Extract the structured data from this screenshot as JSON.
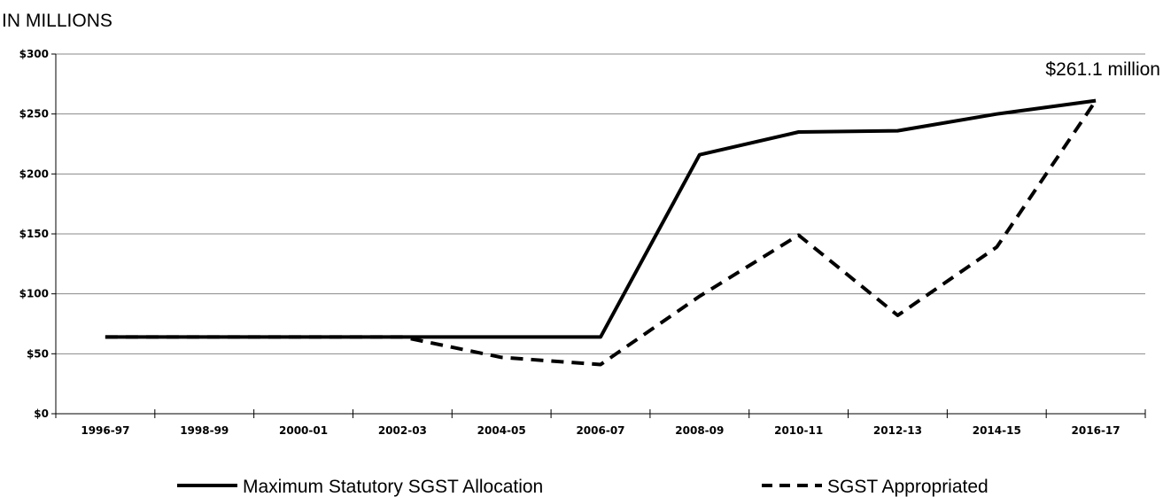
{
  "chart_data": {
    "type": "line",
    "unit_label": "IN MILLIONS",
    "x": [
      "1996-97",
      "1998-99",
      "2000-01",
      "2002-03",
      "2004-05",
      "2006-07",
      "2008-09",
      "2010-11",
      "2012-13",
      "2014-15",
      "2016-17"
    ],
    "y_ticks": [
      "$0",
      "$50",
      "$100",
      "$150",
      "$200",
      "$250",
      "$300"
    ],
    "ylim": [
      0,
      300
    ],
    "grid": true,
    "series": [
      {
        "name": "Maximum Statutory SGST Allocation",
        "style": "solid",
        "color": "#000000",
        "values": [
          64,
          64,
          64,
          64,
          64,
          64,
          216,
          235,
          236,
          250,
          261.1
        ]
      },
      {
        "name": "SGST Appropriated",
        "style": "dashed",
        "color": "#000000",
        "values": [
          64,
          64,
          64,
          64,
          47,
          41,
          98,
          149,
          82,
          139,
          261.1
        ]
      }
    ],
    "annotation": "$261.1 million",
    "legend_position": "bottom"
  }
}
